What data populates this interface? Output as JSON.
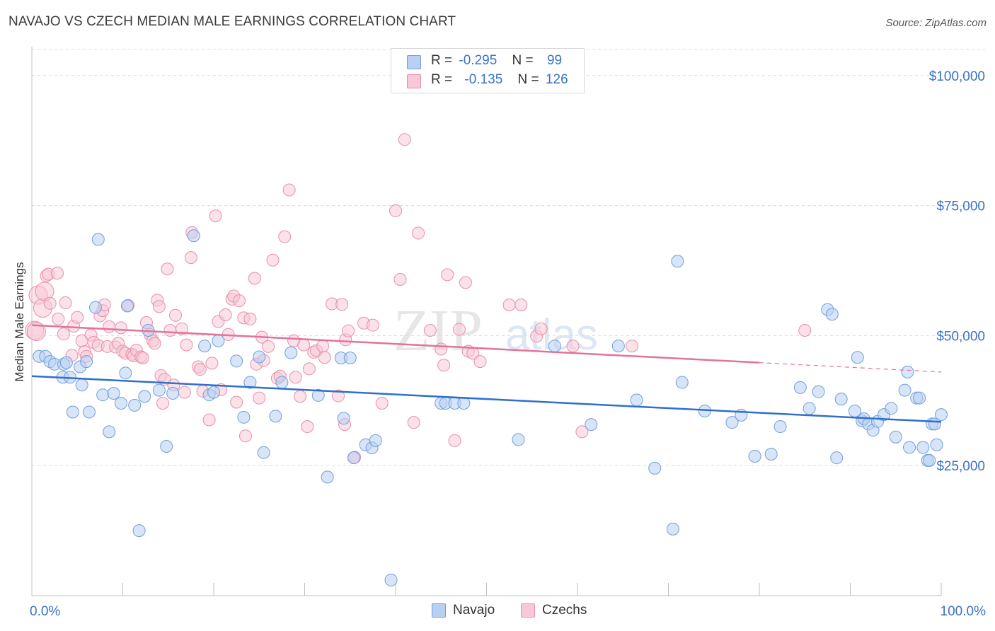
{
  "title": "NAVAJO VS CZECH MEDIAN MALE EARNINGS CORRELATION CHART",
  "source": "Source: ZipAtlas.com",
  "watermark": {
    "zip": "ZIP",
    "atlas": "atlas"
  },
  "colors": {
    "navajo_fill": "#b8d0f2",
    "navajo_stroke": "#6f9fdc",
    "navajo_line": "#2f6fce",
    "czech_fill": "#f8c8d6",
    "czech_stroke": "#e88fab",
    "czech_line": "#e2739a",
    "tick_label": "#3a72c9",
    "grid": "#dcdcdc"
  },
  "legend": {
    "rows": [
      {
        "r_label": "R =",
        "r_value": "-0.295",
        "n_label": "N =",
        "n_value": "99"
      },
      {
        "r_label": "R =",
        "r_value": "-0.135",
        "n_label": "N =",
        "n_value": "126"
      }
    ]
  },
  "bottom_legend": [
    "Navajo",
    "Czechs"
  ],
  "chart_data": {
    "type": "scatter",
    "title": "NAVAJO VS CZECH MEDIAN MALE EARNINGS CORRELATION CHART",
    "xlabel": "",
    "ylabel": "Median Male Earnings",
    "xlim": [
      0,
      100
    ],
    "ylim": [
      0,
      105000
    ],
    "x_tick_labels": [
      "0.0%",
      "100.0%"
    ],
    "y_ticks": [
      25000,
      50000,
      75000,
      100000
    ],
    "y_tick_labels": [
      "$25,000",
      "$50,000",
      "$75,000",
      "$100,000"
    ],
    "grid": "horizontal dashed",
    "legend_position": "top-center",
    "series": [
      {
        "name": "Navajo",
        "r": -0.295,
        "n": 99,
        "trend": {
          "x": [
            0,
            100
          ],
          "y": [
            42200,
            33400
          ]
        },
        "points": [
          [
            0.8,
            46000
          ],
          [
            1.5,
            46000
          ],
          [
            2.0,
            45000
          ],
          [
            2.5,
            44500
          ],
          [
            3.4,
            42000
          ],
          [
            3.5,
            44500
          ],
          [
            3.8,
            44800
          ],
          [
            4.2,
            42000
          ],
          [
            4.5,
            35300
          ],
          [
            5.3,
            44000
          ],
          [
            5.5,
            40500
          ],
          [
            6.0,
            45000
          ],
          [
            6.3,
            35300
          ],
          [
            7.0,
            55400
          ],
          [
            7.3,
            68500
          ],
          [
            7.8,
            38600
          ],
          [
            8.5,
            31500
          ],
          [
            9.0,
            38900
          ],
          [
            9.8,
            37000
          ],
          [
            10.3,
            42800
          ],
          [
            10.5,
            55700
          ],
          [
            11.3,
            36600
          ],
          [
            11.8,
            12500
          ],
          [
            12.4,
            38300
          ],
          [
            12.8,
            51000
          ],
          [
            14.0,
            39500
          ],
          [
            14.8,
            28700
          ],
          [
            15.5,
            38900
          ],
          [
            17.8,
            69200
          ],
          [
            19.0,
            48000
          ],
          [
            19.5,
            38600
          ],
          [
            20.0,
            39100
          ],
          [
            20.5,
            49000
          ],
          [
            22.5,
            45100
          ],
          [
            23.3,
            34300
          ],
          [
            24.0,
            41000
          ],
          [
            25.0,
            45900
          ],
          [
            25.5,
            27500
          ],
          [
            26.8,
            34500
          ],
          [
            27.5,
            41000
          ],
          [
            28.5,
            46700
          ],
          [
            31.5,
            38500
          ],
          [
            32.5,
            22800
          ],
          [
            34.0,
            45700
          ],
          [
            34.3,
            34100
          ],
          [
            35.0,
            45700
          ],
          [
            35.4,
            26500
          ],
          [
            36.7,
            29000
          ],
          [
            37.4,
            28400
          ],
          [
            37.8,
            29800
          ],
          [
            39.5,
            3000
          ],
          [
            45.0,
            37000
          ],
          [
            45.5,
            37000
          ],
          [
            46.5,
            37000
          ],
          [
            47.5,
            37000
          ],
          [
            53.5,
            30000
          ],
          [
            57.5,
            48000
          ],
          [
            61.5,
            32900
          ],
          [
            64.5,
            48000
          ],
          [
            66.5,
            37600
          ],
          [
            68.5,
            24500
          ],
          [
            70.5,
            12800
          ],
          [
            71.0,
            64300
          ],
          [
            71.5,
            41000
          ],
          [
            74.0,
            35500
          ],
          [
            77.0,
            33300
          ],
          [
            78.0,
            34700
          ],
          [
            79.5,
            26800
          ],
          [
            81.3,
            27200
          ],
          [
            82.3,
            32500
          ],
          [
            84.5,
            40000
          ],
          [
            85.5,
            36000
          ],
          [
            86.5,
            39200
          ],
          [
            87.5,
            55000
          ],
          [
            88.0,
            54100
          ],
          [
            88.5,
            26500
          ],
          [
            89.0,
            37800
          ],
          [
            90.5,
            35500
          ],
          [
            90.8,
            45800
          ],
          [
            91.3,
            33600
          ],
          [
            91.5,
            34000
          ],
          [
            92.0,
            33000
          ],
          [
            92.5,
            31800
          ],
          [
            93.0,
            33500
          ],
          [
            93.7,
            34800
          ],
          [
            94.5,
            36000
          ],
          [
            95.0,
            30500
          ],
          [
            96.0,
            39500
          ],
          [
            96.3,
            43000
          ],
          [
            96.5,
            28500
          ],
          [
            97.3,
            38000
          ],
          [
            97.6,
            38000
          ],
          [
            98.0,
            28500
          ],
          [
            98.5,
            26000
          ],
          [
            98.7,
            26000
          ],
          [
            99.0,
            33000
          ],
          [
            99.3,
            33000
          ],
          [
            99.5,
            29000
          ],
          [
            100.0,
            34800
          ]
        ]
      },
      {
        "name": "Czechs",
        "r": -0.135,
        "n": 126,
        "trend": {
          "x": [
            0,
            80,
            100
          ],
          "y": [
            52000,
            44800,
            43000
          ]
        },
        "points": [
          [
            0.3,
            51000
          ],
          [
            0.5,
            50800
          ],
          [
            0.7,
            57800
          ],
          [
            1.2,
            55300
          ],
          [
            1.4,
            58500
          ],
          [
            1.6,
            61500
          ],
          [
            1.8,
            61800
          ],
          [
            2.0,
            56200
          ],
          [
            2.8,
            62000
          ],
          [
            2.9,
            53200
          ],
          [
            3.5,
            50300
          ],
          [
            3.7,
            56300
          ],
          [
            4.4,
            46200
          ],
          [
            4.6,
            51800
          ],
          [
            5.0,
            53500
          ],
          [
            5.5,
            49000
          ],
          [
            5.8,
            46900
          ],
          [
            6.0,
            46000
          ],
          [
            6.5,
            50100
          ],
          [
            6.8,
            48700
          ],
          [
            7.3,
            48100
          ],
          [
            7.5,
            53800
          ],
          [
            7.8,
            54800
          ],
          [
            8.0,
            55900
          ],
          [
            8.3,
            47900
          ],
          [
            8.5,
            51700
          ],
          [
            9.2,
            47800
          ],
          [
            9.5,
            48500
          ],
          [
            9.8,
            51500
          ],
          [
            10.0,
            47000
          ],
          [
            10.3,
            46600
          ],
          [
            10.6,
            55800
          ],
          [
            11.0,
            46400
          ],
          [
            11.2,
            46100
          ],
          [
            11.5,
            47200
          ],
          [
            12.0,
            45900
          ],
          [
            12.2,
            45700
          ],
          [
            12.6,
            52500
          ],
          [
            13.0,
            50200
          ],
          [
            13.3,
            49000
          ],
          [
            13.5,
            48500
          ],
          [
            13.8,
            56800
          ],
          [
            14.0,
            55600
          ],
          [
            14.2,
            42300
          ],
          [
            14.4,
            37000
          ],
          [
            14.6,
            41600
          ],
          [
            14.9,
            62800
          ],
          [
            15.2,
            51000
          ],
          [
            15.6,
            40500
          ],
          [
            15.8,
            53900
          ],
          [
            16.5,
            51300
          ],
          [
            16.8,
            39100
          ],
          [
            17.0,
            48200
          ],
          [
            17.5,
            65000
          ],
          [
            17.6,
            69800
          ],
          [
            18.3,
            44000
          ],
          [
            18.5,
            43500
          ],
          [
            18.8,
            39300
          ],
          [
            19.5,
            33800
          ],
          [
            19.8,
            44700
          ],
          [
            20.2,
            73000
          ],
          [
            20.5,
            52700
          ],
          [
            20.8,
            39600
          ],
          [
            21.3,
            54000
          ],
          [
            21.6,
            50200
          ],
          [
            22.0,
            57000
          ],
          [
            22.2,
            57600
          ],
          [
            22.5,
            37200
          ],
          [
            22.8,
            56700
          ],
          [
            23.3,
            53400
          ],
          [
            23.5,
            30700
          ],
          [
            24.0,
            53200
          ],
          [
            24.5,
            61000
          ],
          [
            24.7,
            44500
          ],
          [
            25.0,
            38000
          ],
          [
            25.3,
            49700
          ],
          [
            25.5,
            45200
          ],
          [
            26.0,
            47900
          ],
          [
            26.5,
            64500
          ],
          [
            27.0,
            41800
          ],
          [
            27.3,
            42200
          ],
          [
            27.8,
            69000
          ],
          [
            28.3,
            78000
          ],
          [
            28.8,
            49000
          ],
          [
            29.0,
            42000
          ],
          [
            29.5,
            38300
          ],
          [
            29.9,
            48200
          ],
          [
            30.3,
            32500
          ],
          [
            30.5,
            43600
          ],
          [
            31.0,
            46800
          ],
          [
            31.3,
            47100
          ],
          [
            32.0,
            48000
          ],
          [
            32.2,
            45800
          ],
          [
            33.0,
            56100
          ],
          [
            33.7,
            38400
          ],
          [
            34.1,
            56000
          ],
          [
            34.4,
            32900
          ],
          [
            34.5,
            49200
          ],
          [
            34.8,
            50900
          ],
          [
            35.5,
            26600
          ],
          [
            36.5,
            52400
          ],
          [
            37.5,
            52000
          ],
          [
            38.5,
            37000
          ],
          [
            40.0,
            74000
          ],
          [
            40.5,
            60800
          ],
          [
            41.0,
            87700
          ],
          [
            42.0,
            33300
          ],
          [
            42.5,
            69700
          ],
          [
            43.8,
            51000
          ],
          [
            45.0,
            47400
          ],
          [
            45.3,
            44300
          ],
          [
            45.7,
            61700
          ],
          [
            46.5,
            29800
          ],
          [
            47.0,
            51200
          ],
          [
            47.7,
            60200
          ],
          [
            48.0,
            47000
          ],
          [
            48.5,
            46600
          ],
          [
            49.3,
            45000
          ],
          [
            52.5,
            55900
          ],
          [
            55.5,
            49900
          ],
          [
            56.0,
            51300
          ],
          [
            59.5,
            48000
          ],
          [
            60.5,
            31500
          ],
          [
            53.8,
            55900
          ],
          [
            66.0,
            48000
          ],
          [
            85.0,
            51000
          ]
        ]
      }
    ]
  }
}
